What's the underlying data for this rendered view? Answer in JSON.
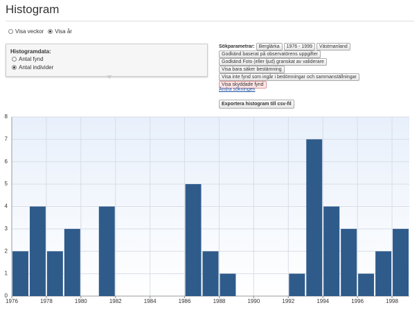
{
  "header": {
    "title": "Histogram"
  },
  "view_options": {
    "options": [
      "Visa veckor",
      "Visa år"
    ],
    "selected": 1
  },
  "histogram_data": {
    "label": "Histogramdata:",
    "options": [
      "Antal fynd",
      "Antal individer"
    ],
    "selected": 1
  },
  "search": {
    "label": "Sökparametrar:",
    "params": [
      "Berglärka",
      "1976 - 1999",
      "Västmanland",
      "Godkänd baserat på observatörens uppgifter",
      "Godkänd Foto (eller ljud) granskat av validerare",
      "Visa bara säker bestämning",
      "Visa inte fynd som ingår i bedömningar och sammanställningar",
      "Visa skyddade fynd"
    ],
    "edit_link": "Ändra sökningen",
    "export_button": "Exportera histogram till csv-fil"
  },
  "chart_data": {
    "type": "histogram",
    "bins": [
      1976,
      1977,
      1978,
      1979,
      1980,
      1981,
      1982,
      1983,
      1984,
      1985,
      1986,
      1987,
      1988,
      1989,
      1990,
      1991,
      1992,
      1993,
      1994,
      1995,
      1996,
      1997,
      1998,
      1999
    ],
    "values": [
      2,
      4,
      2,
      3,
      0,
      4,
      0,
      0,
      0,
      0,
      5,
      2,
      1,
      0,
      0,
      0,
      1,
      7,
      4,
      3,
      1,
      2,
      3
    ],
    "color": "#2f5b8b",
    "xlim": [
      1976,
      1999
    ],
    "xticks": [
      1976,
      1978,
      1980,
      1982,
      1984,
      1986,
      1988,
      1990,
      1992,
      1994,
      1996,
      1998
    ],
    "ylim": [
      0,
      8
    ],
    "yticks": [
      0,
      1,
      2,
      3,
      4,
      5,
      6,
      7,
      8
    ],
    "grid": true
  }
}
